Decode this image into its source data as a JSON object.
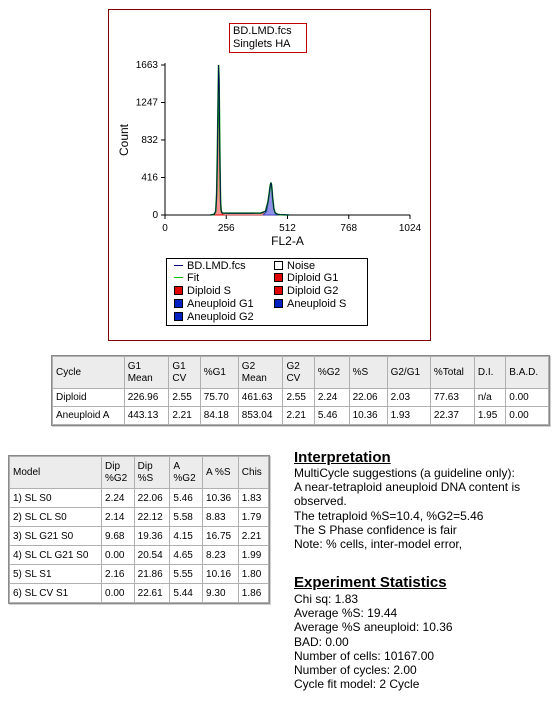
{
  "plot": {
    "title_lines": [
      "BD.LMD.fcs",
      "Singlets HA"
    ],
    "ylabel": "Count",
    "xlabel": "FL2-A",
    "yticks": [
      "0",
      "416",
      "832",
      "1247",
      "1663"
    ],
    "xticks": [
      "0",
      "256",
      "512",
      "768",
      "1024"
    ]
  },
  "chart_data": {
    "type": "area",
    "title": "BD.LMD.fcs Singlets HA",
    "xlabel": "FL2-A",
    "ylabel": "Count",
    "xlim": [
      0,
      1024
    ],
    "ylim": [
      0,
      1663
    ],
    "series": [
      {
        "name": "BD.LMD.fcs",
        "color": "#000000",
        "x": [
          190,
          205,
          212,
          216,
          219,
          222,
          224,
          226,
          228,
          230,
          232,
          234,
          237,
          240,
          260,
          300,
          350,
          400,
          420,
          430,
          436,
          440,
          443,
          446,
          450,
          455,
          460,
          470,
          480,
          500,
          520
        ],
        "y": [
          0,
          6,
          40,
          240,
          700,
          1300,
          1663,
          1500,
          1000,
          520,
          180,
          60,
          28,
          22,
          20,
          20,
          20,
          22,
          40,
          140,
          250,
          330,
          360,
          320,
          190,
          70,
          25,
          8,
          4,
          2,
          0
        ]
      },
      {
        "name": "Diploid G1",
        "color": "#e02020",
        "x": [
          200,
          212,
          216,
          219,
          222,
          224,
          226,
          228,
          230,
          232,
          236,
          242
        ],
        "y": [
          0,
          35,
          220,
          680,
          1280,
          1620,
          1480,
          980,
          500,
          170,
          40,
          0
        ]
      },
      {
        "name": "Diploid S",
        "color": "#f0a0a0",
        "x": [
          226,
          260,
          300,
          350,
          400,
          440,
          462
        ],
        "y": [
          0,
          20,
          20,
          19,
          18,
          16,
          0
        ]
      },
      {
        "name": "Aneuploid G1",
        "color": "#8080e0",
        "x": [
          410,
          425,
          432,
          437,
          441,
          443,
          446,
          450,
          455,
          462,
          472
        ],
        "y": [
          0,
          40,
          150,
          260,
          320,
          335,
          300,
          180,
          60,
          12,
          0
        ]
      }
    ],
    "legend": [
      "BD.LMD.fcs",
      "Noise",
      "Fit",
      "Diploid G1",
      "Diploid S",
      "Diploid G2",
      "Aneuploid G1",
      "Aneuploid S",
      "Aneuploid G2"
    ]
  },
  "legend": {
    "items": [
      {
        "label": "BD.LMD.fcs",
        "kind": "line",
        "color": "#000080"
      },
      {
        "label": "Noise",
        "kind": "box",
        "color": "#ffffff"
      },
      {
        "label": "Fit",
        "kind": "line",
        "color": "#00c000"
      },
      {
        "label": "Diploid G1",
        "kind": "box",
        "color": "#e00000"
      },
      {
        "label": "Diploid S",
        "kind": "box",
        "color": "#e00000"
      },
      {
        "label": "Diploid G2",
        "kind": "box",
        "color": "#e00000"
      },
      {
        "label": "Aneuploid G1",
        "kind": "box",
        "color": "#0020c0"
      },
      {
        "label": "Aneuploid S",
        "kind": "box",
        "color": "#0020c0"
      },
      {
        "label": "Aneuploid G2",
        "kind": "box",
        "color": "#0020c0"
      }
    ]
  },
  "stats_table": {
    "headers": [
      [
        "Cycle"
      ],
      [
        "G1",
        "Mean"
      ],
      [
        "G1",
        "CV"
      ],
      [
        "%G1"
      ],
      [
        "G2",
        "Mean"
      ],
      [
        "G2",
        "CV"
      ],
      [
        "%G2"
      ],
      [
        "%S"
      ],
      [
        "G2/G1"
      ],
      [
        "%Total"
      ],
      [
        "D.I."
      ],
      [
        "B.A.D."
      ]
    ],
    "rows": [
      [
        "Diploid",
        "226.96",
        "2.55",
        "75.70",
        "461.63",
        "2.55",
        "2.24",
        "22.06",
        "2.03",
        "77.63",
        "n/a",
        "0.00"
      ],
      [
        "Aneuploid A",
        "443.13",
        "2.21",
        "84.18",
        "853.04",
        "2.21",
        "5.46",
        "10.36",
        "1.93",
        "22.37",
        "1.95",
        "0.00"
      ]
    ]
  },
  "model_table": {
    "headers": [
      [
        "Model"
      ],
      [
        "Dip",
        "%G2"
      ],
      [
        "Dip",
        "%S"
      ],
      [
        "A",
        "%G2"
      ],
      [
        "A %S"
      ],
      [
        "Chis"
      ]
    ],
    "rows": [
      [
        "1) SL S0",
        "2.24",
        "22.06",
        "5.46",
        "10.36",
        "1.83"
      ],
      [
        "2) SL CL S0",
        "2.14",
        "22.12",
        "5.58",
        "8.83",
        "1.79"
      ],
      [
        "3) SL G21 S0",
        "9.68",
        "19.36",
        "4.15",
        "16.75",
        "2.21"
      ],
      [
        "4) SL CL G21 S0",
        "0.00",
        "20.54",
        "4.65",
        "8.23",
        "1.99"
      ],
      [
        "5) SL S1",
        "2.16",
        "21.86",
        "5.55",
        "10.16",
        "1.80"
      ],
      [
        "6) SL CV S1",
        "0.00",
        "22.61",
        "5.44",
        "9.30",
        "1.86"
      ]
    ]
  },
  "interpretation": {
    "title": "Interpretation",
    "lines": [
      "MultiCycle suggestions (a guideline only):",
      "A near-tetraploid aneuploid DNA content is",
      "observed.",
      "The tetraploid %S=10.4, %G2=5.46",
      "The S Phase confidence is fair",
      "Note: % cells, inter-model error,"
    ]
  },
  "experiment": {
    "title": "Experiment Statistics",
    "lines": [
      "Chi sq: 1.83",
      "Average %S: 19.44",
      "Average %S aneuploid: 10.36",
      "BAD: 0.00",
      "Number of cells: 10167.00",
      "Number of cycles: 2.00",
      "Cycle fit model: 2 Cycle"
    ]
  }
}
